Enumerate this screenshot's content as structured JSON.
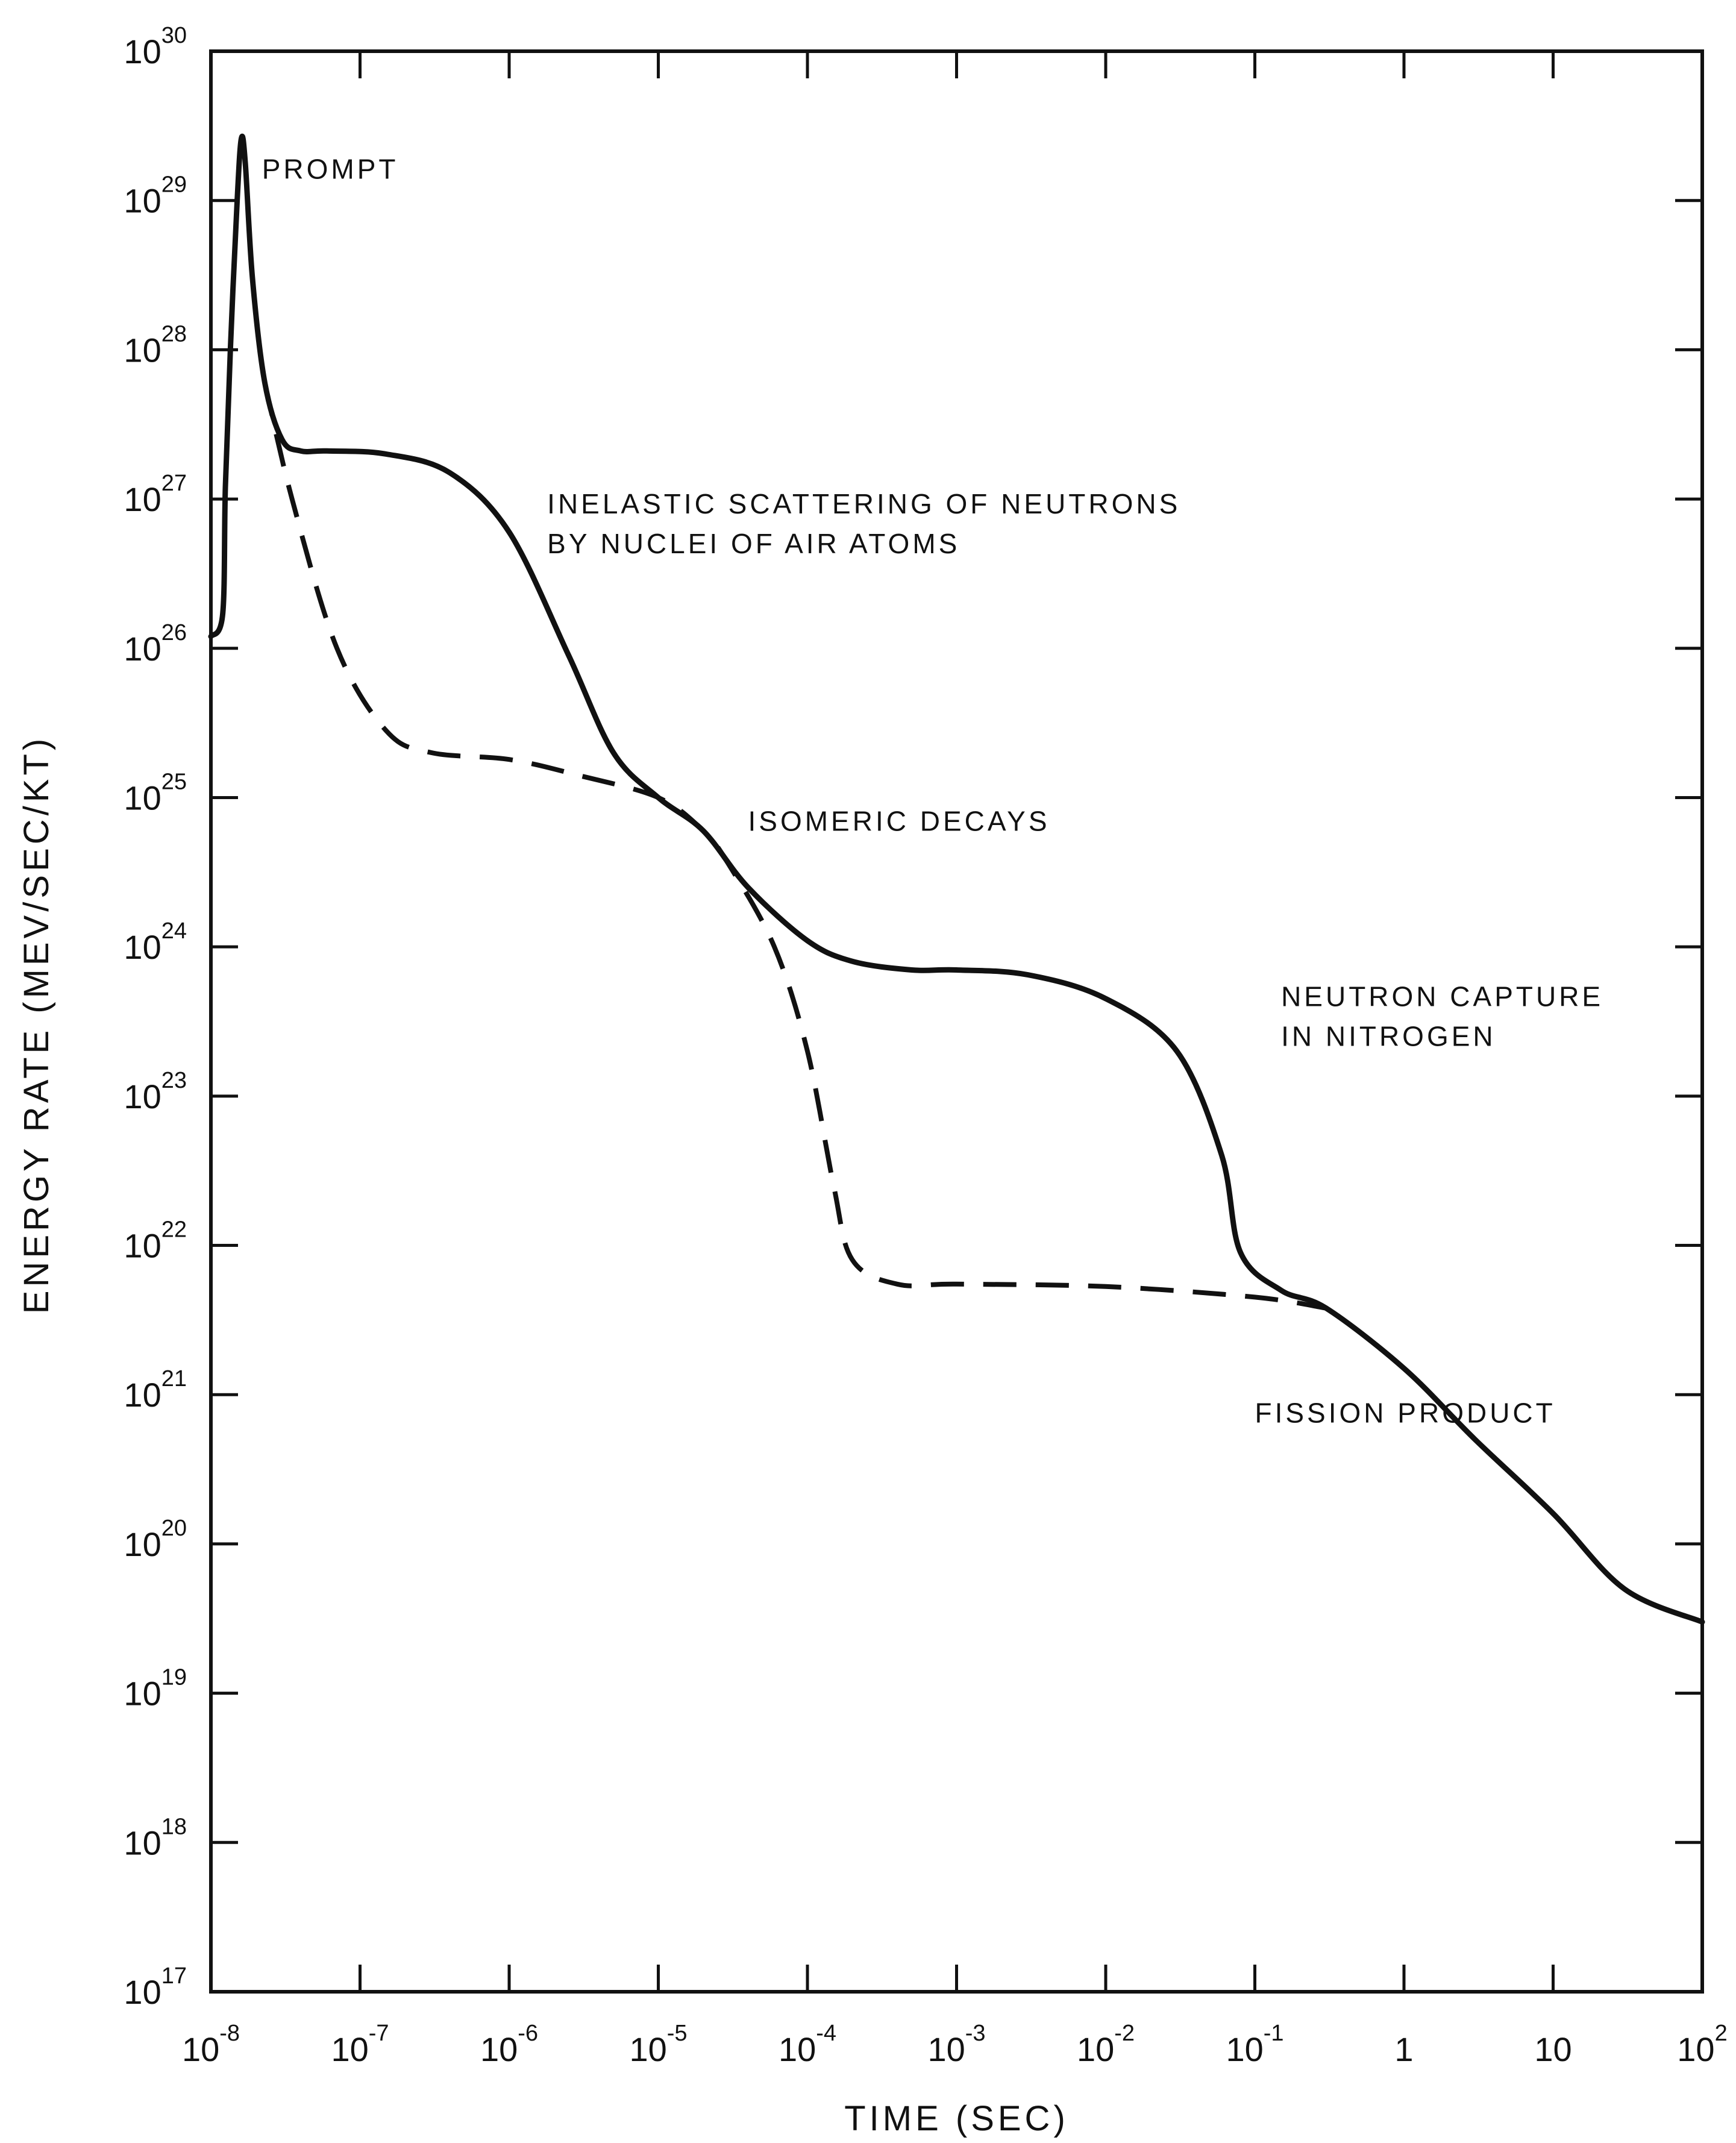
{
  "chart_data": {
    "type": "line",
    "title": "",
    "xlabel": "TIME (SEC)",
    "ylabel": "ENERGY RATE (MEV/SEC/KT)",
    "xscale": "log",
    "yscale": "log",
    "xlim": [
      1e-08,
      100
    ],
    "ylim": [
      1e+17,
      1e+30
    ],
    "grid": false,
    "legend": "none",
    "x_ticks": [
      {
        "value": 1e-08,
        "base": "10",
        "exp": "-8"
      },
      {
        "value": 1e-07,
        "base": "10",
        "exp": "-7"
      },
      {
        "value": 1e-06,
        "base": "10",
        "exp": "-6"
      },
      {
        "value": 1e-05,
        "base": "10",
        "exp": "-5"
      },
      {
        "value": 0.0001,
        "base": "10",
        "exp": "-4"
      },
      {
        "value": 0.001,
        "base": "10",
        "exp": "-3"
      },
      {
        "value": 0.01,
        "base": "10",
        "exp": "-2"
      },
      {
        "value": 0.1,
        "base": "10",
        "exp": "-1"
      },
      {
        "value": 1,
        "base": "1",
        "exp": ""
      },
      {
        "value": 10,
        "base": "10",
        "exp": ""
      },
      {
        "value": 100,
        "base": "10",
        "exp": "2"
      }
    ],
    "y_ticks": [
      {
        "value": 1e+17,
        "base": "10",
        "exp": "17"
      },
      {
        "value": 1e+18,
        "base": "10",
        "exp": "18"
      },
      {
        "value": 1e+19,
        "base": "10",
        "exp": "19"
      },
      {
        "value": 1e+20,
        "base": "10",
        "exp": "20"
      },
      {
        "value": 1e+21,
        "base": "10",
        "exp": "21"
      },
      {
        "value": 1e+22,
        "base": "10",
        "exp": "22"
      },
      {
        "value": 1e+23,
        "base": "10",
        "exp": "23"
      },
      {
        "value": 1e+24,
        "base": "10",
        "exp": "24"
      },
      {
        "value": 1e+25,
        "base": "10",
        "exp": "25"
      },
      {
        "value": 1e+26,
        "base": "10",
        "exp": "26"
      },
      {
        "value": 1e+27,
        "base": "10",
        "exp": "27"
      },
      {
        "value": 1e+28,
        "base": "10",
        "exp": "28"
      },
      {
        "value": 1e+29,
        "base": "10",
        "exp": "29"
      },
      {
        "value": 1e+30,
        "base": "10",
        "exp": "30"
      }
    ],
    "series": [
      {
        "style": "solid",
        "points": [
          [
            1e-08,
            1.2e+26
          ],
          [
            1.2e-08,
            1.7e+26
          ],
          [
            1.25e-08,
            1.2e+27
          ],
          [
            1.35e-08,
            1e+28
          ],
          [
            1.5e-08,
            1e+29
          ],
          [
            1.6e-08,
            2.6e+29
          ],
          [
            1.7e-08,
            1.8e+29
          ],
          [
            1.9e-08,
            3e+28
          ],
          [
            2.3e-08,
            6e+27
          ],
          [
            3e-08,
            2.5e+27
          ],
          [
            4e-08,
            2.1e+27
          ],
          [
            6e-08,
            2.1e+27
          ],
          [
            1.5e-07,
            2e+27
          ],
          [
            4e-07,
            1.5e+27
          ],
          [
            1e-06,
            6e+26
          ],
          [
            2.5e-06,
            9e+25
          ],
          [
            5e-06,
            2e+25
          ],
          [
            1e-05,
            1e+25
          ],
          [
            2e-05,
            6e+24
          ],
          [
            4e-05,
            2.5e+24
          ],
          [
            0.0001,
            1.1e+24
          ],
          [
            0.0002,
            8e+23
          ],
          [
            0.0005,
            7e+23
          ],
          [
            0.001,
            7e+23
          ],
          [
            0.003,
            6.5e+23
          ],
          [
            0.01,
            4.5e+23
          ],
          [
            0.03,
            2e+23
          ],
          [
            0.06,
            4e+22
          ],
          [
            0.08,
            9e+21
          ],
          [
            0.15,
            5e+21
          ],
          [
            0.3,
            3.8e+21
          ],
          [
            1,
            1.5e+21
          ],
          [
            3,
            5e+20
          ],
          [
            10,
            1.6e+20
          ],
          [
            30,
            5e+19
          ],
          [
            100,
            3e+19
          ]
        ]
      },
      {
        "style": "dashed",
        "points": [
          [
            2.3e-08,
            6e+27
          ],
          [
            3.5e-08,
            1e+27
          ],
          [
            7e-08,
            1e+26
          ],
          [
            1.5e-07,
            2.8e+25
          ],
          [
            3e-07,
            2e+25
          ],
          [
            1e-06,
            1.8e+25
          ],
          [
            3e-06,
            1.4e+25
          ],
          [
            1e-05,
            1e+25
          ],
          [
            2e-05,
            6e+24
          ],
          [
            3e-05,
            3.5e+24
          ],
          [
            6e-05,
            1e+24
          ],
          [
            0.0001,
            2e+23
          ],
          [
            0.00015,
            2.5e+22
          ],
          [
            0.0002,
            8e+21
          ],
          [
            0.0004,
            5.5e+21
          ],
          [
            0.001,
            5.5e+21
          ],
          [
            0.01,
            5.3e+21
          ],
          [
            0.1,
            4.5e+21
          ],
          [
            0.3,
            3.8e+21
          ]
        ]
      }
    ],
    "annotations": [
      {
        "lines": [
          "PROMPT"
        ],
        "x": 2.2e-08,
        "y": 1.4e+29
      },
      {
        "lines": [
          "INELASTIC SCATTERING OF NEUTRONS",
          "BY NUCLEI OF AIR ATOMS"
        ],
        "x": 1.8e-06,
        "y": 8e+26
      },
      {
        "lines": [
          "ISOMERIC DECAYS"
        ],
        "x": 4e-05,
        "y": 6e+24
      },
      {
        "lines": [
          "NEUTRON CAPTURE",
          "IN NITROGEN"
        ],
        "x": 0.15,
        "y": 4e+23
      },
      {
        "lines": [
          "FISSION PRODUCT"
        ],
        "x": 0.1,
        "y": 6.5e+20
      }
    ]
  }
}
